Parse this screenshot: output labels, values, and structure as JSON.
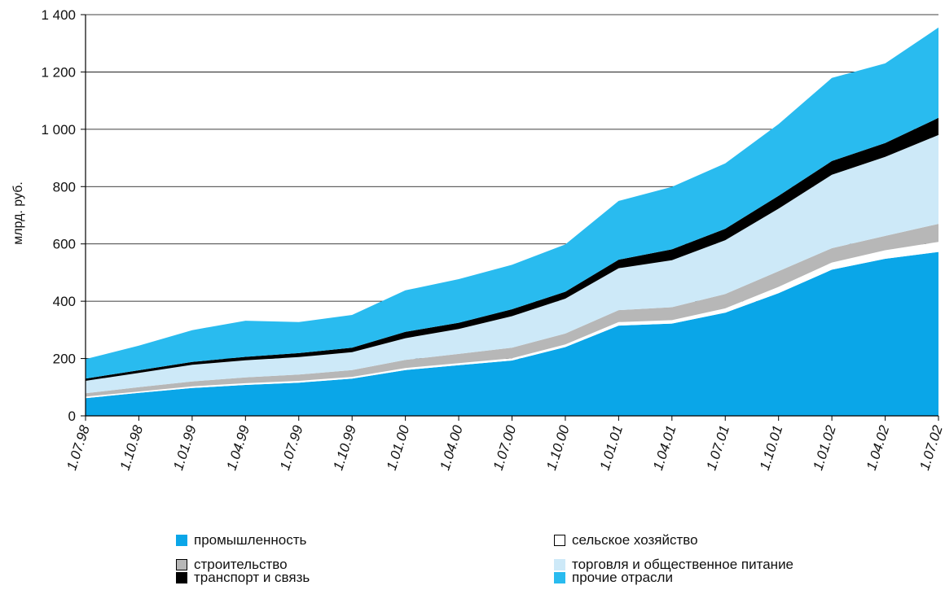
{
  "chart_data": {
    "type": "area",
    "stacked": true,
    "ylabel": "млрд. руб.",
    "xlabel": "",
    "ylim": [
      0,
      1400
    ],
    "yticks": [
      0,
      200,
      400,
      600,
      800,
      1000,
      1200,
      1400
    ],
    "ytick_labels": [
      "0",
      "200",
      "400",
      "600",
      "800",
      "1 000",
      "1 200",
      "1 400"
    ],
    "grid": "horizontal",
    "legend_position": "bottom",
    "categories": [
      "1.07.98",
      "1.10.98",
      "1.01.99",
      "1.04.99",
      "1.07.99",
      "1.10.99",
      "1.01.00",
      "1.04.00",
      "1.07.00",
      "1.10.00",
      "1.01.01",
      "1.04.01",
      "1.07.01",
      "1.10.01",
      "1.01.02",
      "1.04.02",
      "1.07.02"
    ],
    "series": [
      {
        "name": "промышленность",
        "color": "#0aa6e8",
        "values": [
          62,
          80,
          97,
          108,
          116,
          130,
          160,
          177,
          193,
          240,
          315,
          322,
          360,
          428,
          510,
          548,
          572
        ]
      },
      {
        "name": "сельское хозяйство",
        "color": "#ffffff",
        "values": [
          5,
          5,
          6,
          6,
          6,
          6,
          7,
          7,
          8,
          9,
          12,
          12,
          15,
          22,
          25,
          30,
          35
        ]
      },
      {
        "name": "строительство",
        "color": "#b7b7b7",
        "values": [
          12,
          15,
          17,
          20,
          22,
          24,
          28,
          32,
          37,
          38,
          42,
          45,
          50,
          55,
          50,
          50,
          63
        ]
      },
      {
        "name": "торговля и общественное питание",
        "color": "#cde9f8",
        "values": [
          43,
          50,
          58,
          60,
          61,
          62,
          76,
          87,
          110,
          122,
          146,
          164,
          188,
          218,
          256,
          276,
          310
        ]
      },
      {
        "name": "транспорт и связь",
        "color": "#000000",
        "values": [
          8,
          9,
          10,
          12,
          14,
          16,
          22,
          22,
          24,
          24,
          30,
          38,
          40,
          45,
          48,
          48,
          60
        ]
      },
      {
        "name": "прочие отрасли",
        "color": "#29bbef",
        "values": [
          68,
          86,
          111,
          126,
          108,
          114,
          145,
          152,
          155,
          165,
          205,
          218,
          228,
          250,
          290,
          278,
          315
        ]
      }
    ]
  }
}
